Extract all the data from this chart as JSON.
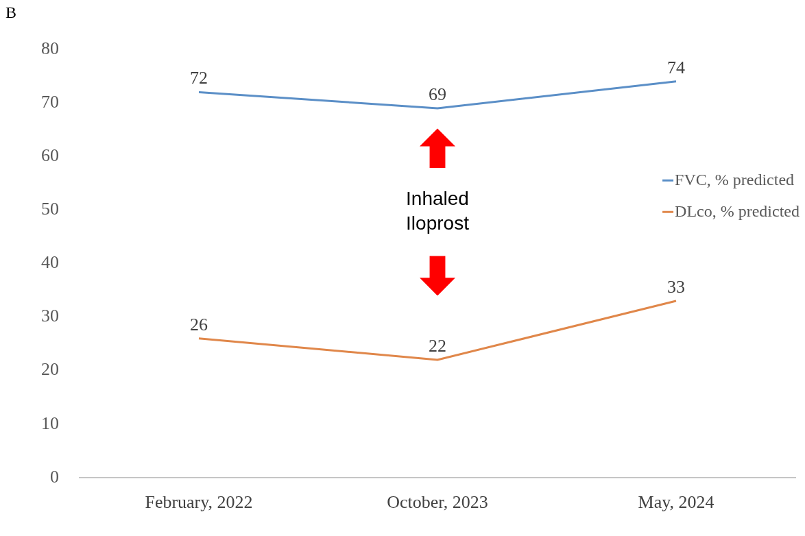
{
  "chart_data": {
    "type": "line",
    "categories": [
      "February, 2022",
      "October, 2023",
      "May, 2024"
    ],
    "series": [
      {
        "name": "FVC, % predicted",
        "color": "#5b8fc7",
        "values": [
          72,
          69,
          74
        ]
      },
      {
        "name": "DLco, % predicted",
        "color": "#e0874a",
        "values": [
          26,
          22,
          33
        ]
      }
    ],
    "ylim": [
      0,
      80
    ],
    "yticks": [
      0,
      10,
      20,
      30,
      40,
      50,
      60,
      70,
      80
    ],
    "grid": false,
    "legend": "right",
    "marker": "none",
    "line_style": "solid",
    "data_labels": true,
    "annotations": [
      "B",
      "Inhaled Iloprost"
    ]
  }
}
